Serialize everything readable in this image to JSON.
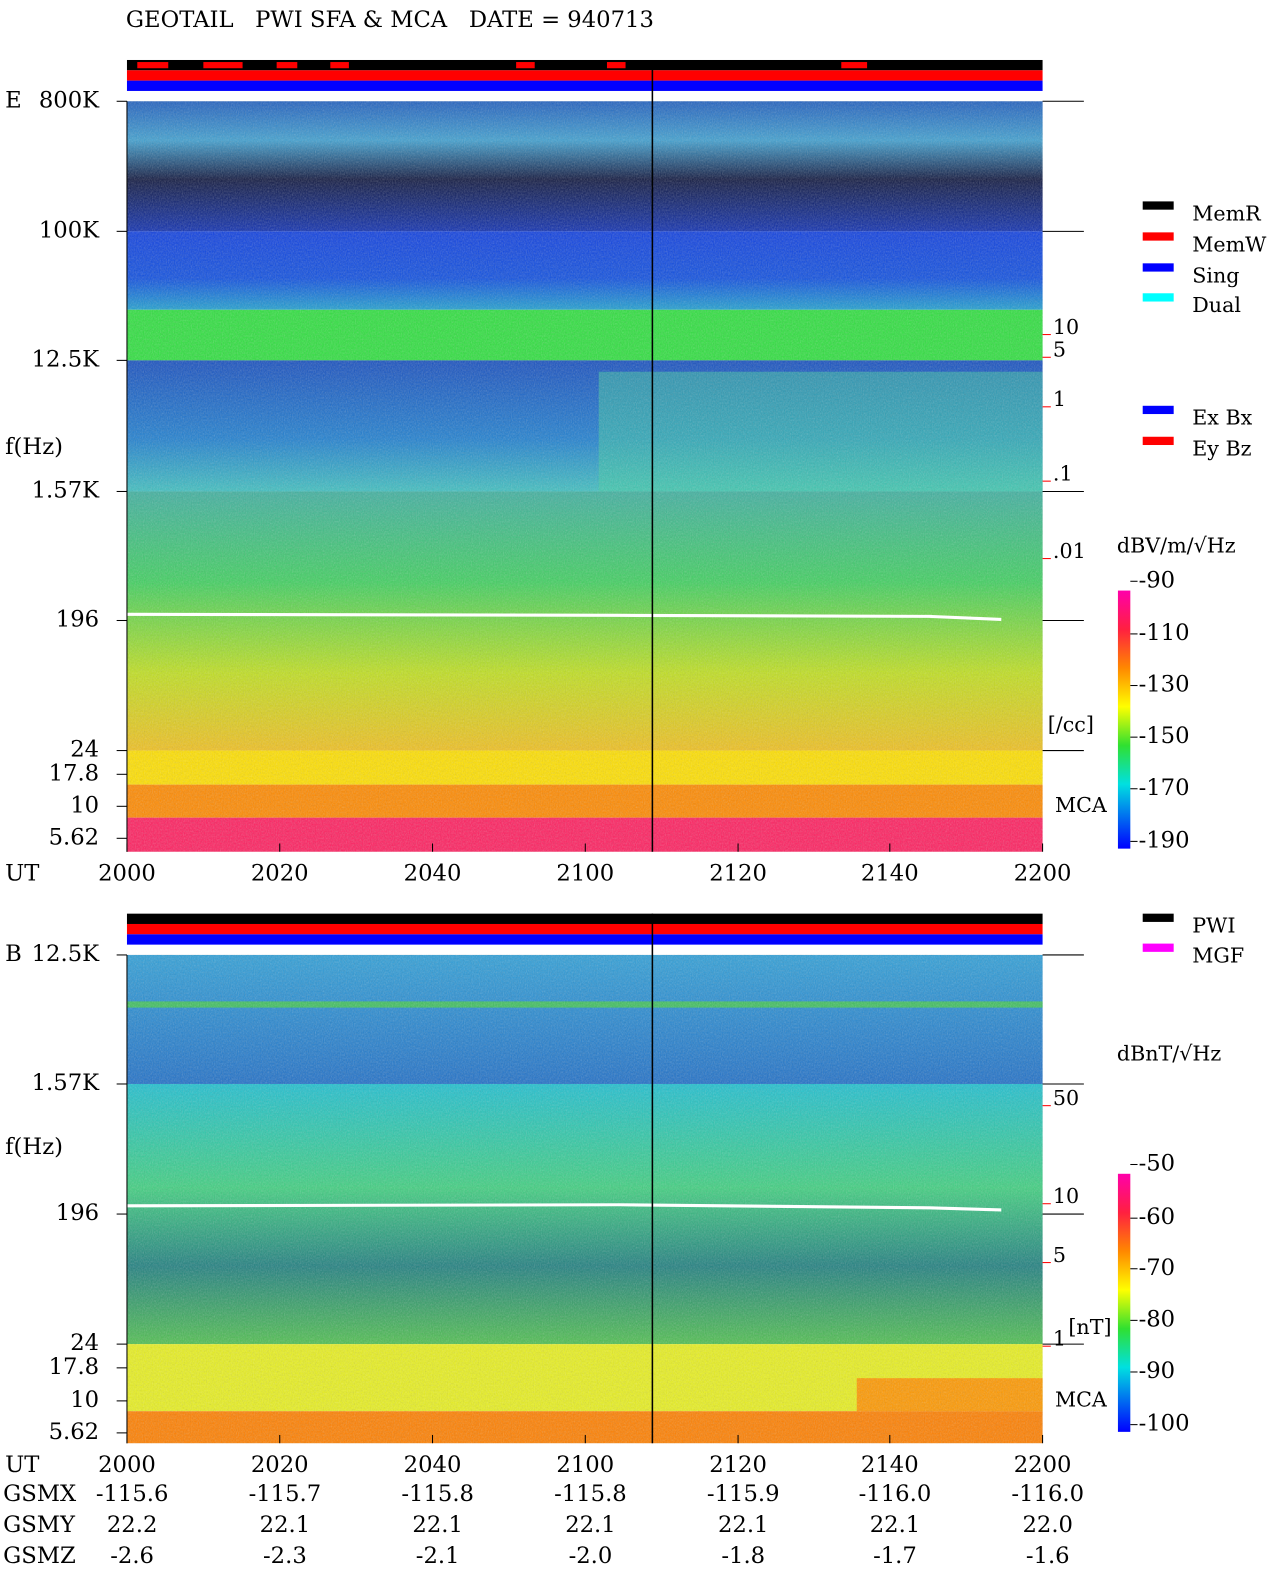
{
  "header": {
    "title": "GEOTAIL   PWI SFA & MCA   DATE = 940713"
  },
  "panels": [
    {
      "label": "E",
      "freq_label": "f(Hz)",
      "freq_ticks": [
        "800K",
        "100K",
        "12.5K",
        "1.57K",
        "196",
        "24",
        "17.8",
        "10",
        "5.62"
      ],
      "density_ticks": [
        "10",
        "5",
        "1",
        ".1",
        ".01"
      ],
      "density_unit": "[/cc]",
      "mca_label": "MCA",
      "colorbar_unit": "dBV/m/√Hz",
      "colorbar_ticks": [
        "-90",
        "-110",
        "-130",
        "-150",
        "-170",
        "-190"
      ],
      "legend": [
        {
          "label": "MemR",
          "color": "#000000"
        },
        {
          "label": "MemW",
          "color": "#ff0000"
        },
        {
          "label": "Sing",
          "color": "#0000ff"
        },
        {
          "label": "Dual",
          "color": "#00ffff"
        },
        {
          "label": "Ex Bx",
          "color": "#0000ff"
        },
        {
          "label": "Ey Bz",
          "color": "#ff0000"
        }
      ]
    },
    {
      "label": "B",
      "freq_label": "f(Hz)",
      "freq_ticks": [
        "12.5K",
        "1.57K",
        "196",
        "24",
        "17.8",
        "10",
        "5.62"
      ],
      "density_ticks": [
        "50",
        "10",
        "5",
        "1"
      ],
      "density_unit": "[nT]",
      "mca_label": "MCA",
      "colorbar_unit": "dBnT/√Hz",
      "colorbar_ticks": [
        "-50",
        "-60",
        "-70",
        "-80",
        "-90",
        "-100"
      ],
      "legend": [
        {
          "label": "PWI",
          "color": "#000000"
        },
        {
          "label": "MGF",
          "color": "#ff00ff"
        }
      ]
    }
  ],
  "time_axis": {
    "label": "UT",
    "ticks": [
      "2000",
      "2020",
      "2040",
      "2100",
      "2120",
      "2140",
      "2200"
    ]
  },
  "orbit": {
    "rows": [
      {
        "label": "GSMX",
        "values": [
          "-115.6",
          "-115.7",
          "-115.8",
          "-115.8",
          "-115.9",
          "-116.0",
          "-116.0"
        ]
      },
      {
        "label": "GSMY",
        "values": [
          "22.2",
          "22.1",
          "22.1",
          "22.1",
          "22.1",
          "22.1",
          "22.0"
        ]
      },
      {
        "label": "GSMZ",
        "values": [
          "-2.6",
          "-2.3",
          "-2.1",
          "-2.0",
          "-1.8",
          "-1.7",
          "-1.6"
        ]
      }
    ]
  }
}
